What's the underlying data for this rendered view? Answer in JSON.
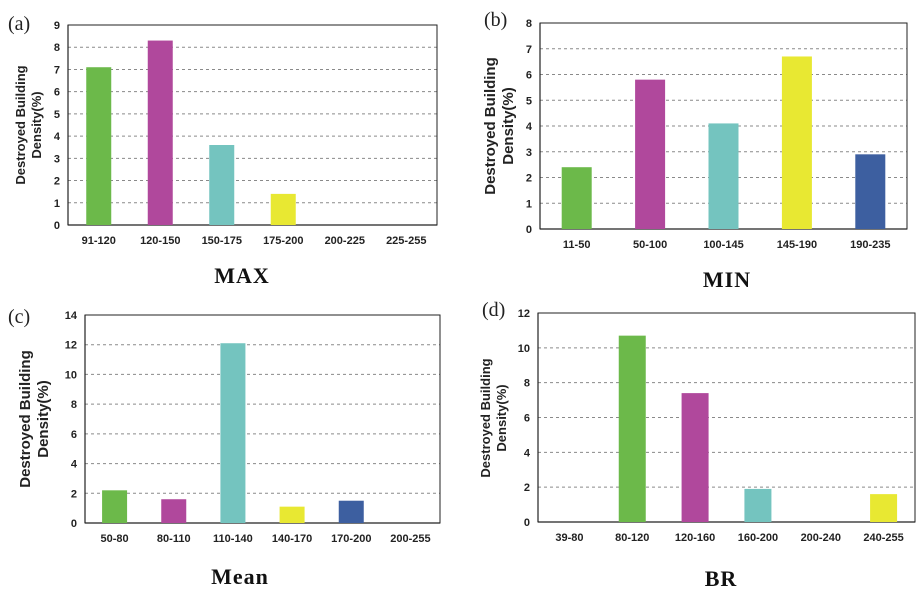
{
  "colors": {
    "green": "#6cb94a",
    "magenta": "#b0489c",
    "teal": "#74c4bf",
    "yellow": "#e8e832",
    "blue": "#3d5fa0"
  },
  "chart_data": [
    {
      "panel": "(a)",
      "type": "bar",
      "title": "MAX",
      "ylabel": "Destroyed Building Density(%)",
      "xlabel": "",
      "categories": [
        "91-120",
        "120-150",
        "150-175",
        "175-200",
        "200-225",
        "225-255"
      ],
      "values": [
        7.1,
        8.3,
        3.6,
        1.4,
        0,
        0
      ],
      "bar_colors": [
        "green",
        "magenta",
        "teal",
        "yellow",
        "blue",
        "blue"
      ],
      "ylim": [
        0,
        9
      ],
      "yticks": [
        0,
        1,
        2,
        3,
        4,
        5,
        6,
        7,
        8,
        9
      ],
      "grid": true
    },
    {
      "panel": "(b)",
      "type": "bar",
      "title": "MIN",
      "ylabel": "Destroyed Building Density(%)",
      "xlabel": "",
      "categories": [
        "11-50",
        "50-100",
        "100-145",
        "145-190",
        "190-235"
      ],
      "values": [
        2.4,
        5.8,
        4.1,
        6.7,
        2.9
      ],
      "bar_colors": [
        "green",
        "magenta",
        "teal",
        "yellow",
        "blue"
      ],
      "ylim": [
        0,
        8
      ],
      "yticks": [
        0,
        1,
        2,
        3,
        4,
        5,
        6,
        7,
        8
      ],
      "grid": true
    },
    {
      "panel": "(c)",
      "type": "bar",
      "title": "Mean",
      "ylabel": "Destroyed Building Density(%)",
      "xlabel": "",
      "categories": [
        "50-80",
        "80-110",
        "110-140",
        "140-170",
        "170-200",
        "200-255"
      ],
      "values": [
        2.2,
        1.6,
        12.1,
        1.1,
        1.5,
        0
      ],
      "bar_colors": [
        "green",
        "magenta",
        "teal",
        "yellow",
        "blue",
        "blue"
      ],
      "ylim": [
        0,
        14
      ],
      "yticks": [
        0,
        2,
        4,
        6,
        8,
        10,
        12,
        14
      ],
      "grid": true
    },
    {
      "panel": "(d)",
      "type": "bar",
      "title": "BR",
      "ylabel": "Destroyed Building Density(%)",
      "xlabel": "",
      "categories": [
        "39-80",
        "80-120",
        "120-160",
        "160-200",
        "200-240",
        "240-255"
      ],
      "values": [
        0,
        10.7,
        7.4,
        1.9,
        0,
        1.6
      ],
      "bar_colors": [
        "green",
        "green",
        "magenta",
        "teal",
        "blue",
        "yellow"
      ],
      "ylim": [
        0,
        12
      ],
      "yticks": [
        0,
        2,
        4,
        6,
        8,
        10,
        12
      ],
      "grid": true
    }
  ]
}
